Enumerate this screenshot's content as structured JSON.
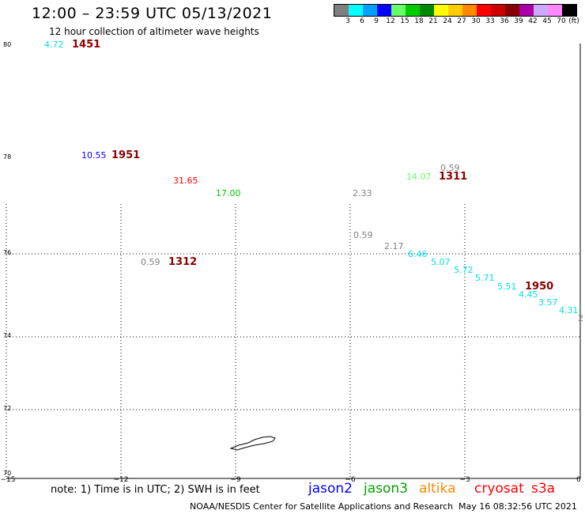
{
  "header": {
    "title": "12:00 – 23:59 UTC 05/13/2021",
    "subtitle": "12 hour collection of altimeter wave heights"
  },
  "legend": {
    "unit": "(ft)",
    "items": [
      {
        "label": "3",
        "color": "#808080"
      },
      {
        "label": "6",
        "color": "#00ffff"
      },
      {
        "label": "9",
        "color": "#00a0ff"
      },
      {
        "label": "12",
        "color": "#0000ff"
      },
      {
        "label": "15",
        "color": "#66ff66"
      },
      {
        "label": "18",
        "color": "#00cc00"
      },
      {
        "label": "21",
        "color": "#008800"
      },
      {
        "label": "24",
        "color": "#ffff00"
      },
      {
        "label": "27",
        "color": "#ffcc00"
      },
      {
        "label": "30",
        "color": "#ff8800"
      },
      {
        "label": "33",
        "color": "#ff0000"
      },
      {
        "label": "36",
        "color": "#cc0000"
      },
      {
        "label": "39",
        "color": "#880000"
      },
      {
        "label": "42",
        "color": "#aa00aa"
      },
      {
        "label": "45",
        "color": "#ccaaff"
      },
      {
        "label": "70",
        "color": "#ff88ff"
      },
      {
        "label": "",
        "color": "#000000"
      }
    ]
  },
  "axes": {
    "lon_ticks": [
      "−15",
      "−12",
      "−9",
      "−6",
      "−3",
      "0"
    ],
    "lat_ticks": [
      "80",
      "78",
      "76",
      "74",
      "72",
      "70"
    ]
  },
  "observations": [
    {
      "text": "4.72",
      "color": "#00e0e0"
    },
    {
      "text": "10.55",
      "color": "#0000ff"
    },
    {
      "text": "31.65",
      "color": "#ff0000"
    },
    {
      "text": "17.00",
      "color": "#00cc00"
    },
    {
      "text": "0.59",
      "color": "#808080"
    },
    {
      "text": "2.33",
      "color": "#808080"
    },
    {
      "text": "0.59",
      "color": "#808080"
    },
    {
      "text": "14.07",
      "color": "#66ff66"
    },
    {
      "text": "0.59",
      "color": "#808080"
    },
    {
      "text": "2.17",
      "color": "#808080"
    },
    {
      "text": "6.46",
      "color": "#00e0e0"
    },
    {
      "text": "5.07",
      "color": "#00e0e0"
    },
    {
      "text": "5.72",
      "color": "#00e0e0"
    },
    {
      "text": "5.71",
      "color": "#00e0e0"
    },
    {
      "text": "5.51",
      "color": "#00e0e0"
    },
    {
      "text": "4.45",
      "color": "#00e0e0"
    },
    {
      "text": "3.57",
      "color": "#00e0e0"
    },
    {
      "text": "4.31",
      "color": "#00e0e0"
    },
    {
      "text": "2",
      "color": "#808080"
    }
  ],
  "pass_times": [
    {
      "text": "1451",
      "color": "#880000"
    },
    {
      "text": "1951",
      "color": "#880000"
    },
    {
      "text": "1312",
      "color": "#880000"
    },
    {
      "text": "1311",
      "color": "#880000"
    },
    {
      "text": "1950",
      "color": "#880000"
    }
  ],
  "footer": {
    "note": "note: 1) Time is in UTC; 2) SWH is in feet",
    "satellites": [
      {
        "name": "jason2",
        "color": "#0000ff"
      },
      {
        "name": "jason3",
        "color": "#00a000"
      },
      {
        "name": "altika",
        "color": "#ff8800"
      },
      {
        "name": "cryosat",
        "color": "#ff0000"
      },
      {
        "name": "s3a",
        "color": "#ff0000"
      }
    ],
    "credit": "NOAA/NESDIS Center for Satellite Applications and Research",
    "timestamp": "May 16 08:32:56 UTC 2021"
  }
}
